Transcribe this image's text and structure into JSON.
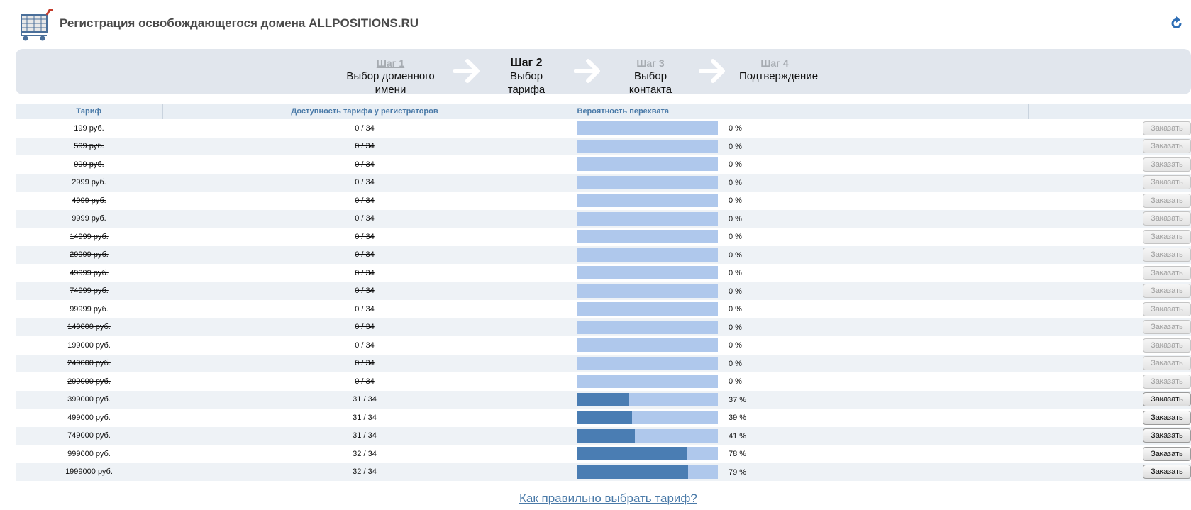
{
  "header": {
    "title": "Регистрация освобождающегося домена ALLPOSITIONS.RU",
    "cart_icon": "shopping-cart-icon",
    "refresh_icon": "refresh-icon"
  },
  "steps": [
    {
      "num": "Шаг 1",
      "label": "Выбор доменного имени",
      "state": "done"
    },
    {
      "num": "Шаг 2",
      "label": "Выбор тарифа",
      "state": "active"
    },
    {
      "num": "Шаг 3",
      "label": "Выбор контакта",
      "state": "pending"
    },
    {
      "num": "Шаг 4",
      "label": "Подтверждение",
      "state": "pending"
    }
  ],
  "table": {
    "headers": [
      "Тариф",
      "Доступность тарифа у регистраторов",
      "Вероятность перехвата",
      ""
    ],
    "rows": [
      {
        "price": "199 руб.",
        "avail": "0 / 34",
        "prob": 0,
        "prob_text": "0 %",
        "button": "Заказать",
        "enabled": false
      },
      {
        "price": "599 руб.",
        "avail": "0 / 34",
        "prob": 0,
        "prob_text": "0 %",
        "button": "Заказать",
        "enabled": false
      },
      {
        "price": "999 руб.",
        "avail": "0 / 34",
        "prob": 0,
        "prob_text": "0 %",
        "button": "Заказать",
        "enabled": false
      },
      {
        "price": "2999 руб.",
        "avail": "0 / 34",
        "prob": 0,
        "prob_text": "0 %",
        "button": "Заказать",
        "enabled": false
      },
      {
        "price": "4999 руб.",
        "avail": "0 / 34",
        "prob": 0,
        "prob_text": "0 %",
        "button": "Заказать",
        "enabled": false
      },
      {
        "price": "9999 руб.",
        "avail": "0 / 34",
        "prob": 0,
        "prob_text": "0 %",
        "button": "Заказать",
        "enabled": false
      },
      {
        "price": "14999 руб.",
        "avail": "0 / 34",
        "prob": 0,
        "prob_text": "0 %",
        "button": "Заказать",
        "enabled": false
      },
      {
        "price": "29999 руб.",
        "avail": "0 / 34",
        "prob": 0,
        "prob_text": "0 %",
        "button": "Заказать",
        "enabled": false
      },
      {
        "price": "49999 руб.",
        "avail": "0 / 34",
        "prob": 0,
        "prob_text": "0 %",
        "button": "Заказать",
        "enabled": false
      },
      {
        "price": "74999 руб.",
        "avail": "0 / 34",
        "prob": 0,
        "prob_text": "0 %",
        "button": "Заказать",
        "enabled": false
      },
      {
        "price": "99999 руб.",
        "avail": "0 / 34",
        "prob": 0,
        "prob_text": "0 %",
        "button": "Заказать",
        "enabled": false
      },
      {
        "price": "149000 руб.",
        "avail": "0 / 34",
        "prob": 0,
        "prob_text": "0 %",
        "button": "Заказать",
        "enabled": false
      },
      {
        "price": "199000 руб.",
        "avail": "0 / 34",
        "prob": 0,
        "prob_text": "0 %",
        "button": "Заказать",
        "enabled": false
      },
      {
        "price": "249000 руб.",
        "avail": "0 / 34",
        "prob": 0,
        "prob_text": "0 %",
        "button": "Заказать",
        "enabled": false
      },
      {
        "price": "299000 руб.",
        "avail": "0 / 34",
        "prob": 0,
        "prob_text": "0 %",
        "button": "Заказать",
        "enabled": false
      },
      {
        "price": "399000 руб.",
        "avail": "31 / 34",
        "prob": 37,
        "prob_text": "37 %",
        "button": "Заказать",
        "enabled": true
      },
      {
        "price": "499000 руб.",
        "avail": "31 / 34",
        "prob": 39,
        "prob_text": "39 %",
        "button": "Заказать",
        "enabled": true
      },
      {
        "price": "749000 руб.",
        "avail": "31 / 34",
        "prob": 41,
        "prob_text": "41 %",
        "button": "Заказать",
        "enabled": true
      },
      {
        "price": "999000 руб.",
        "avail": "32 / 34",
        "prob": 78,
        "prob_text": "78 %",
        "button": "Заказать",
        "enabled": true
      },
      {
        "price": "1999000 руб.",
        "avail": "32 / 34",
        "prob": 79,
        "prob_text": "79 %",
        "button": "Заказать",
        "enabled": true
      }
    ]
  },
  "footer": {
    "help_link": "Как правильно выбрать тариф?"
  },
  "colors": {
    "bar_bg": "#afc8ec",
    "bar_fill": "#4a7db3",
    "header_text": "#4a7aa8",
    "steps_bg": "#e1e6ed"
  }
}
